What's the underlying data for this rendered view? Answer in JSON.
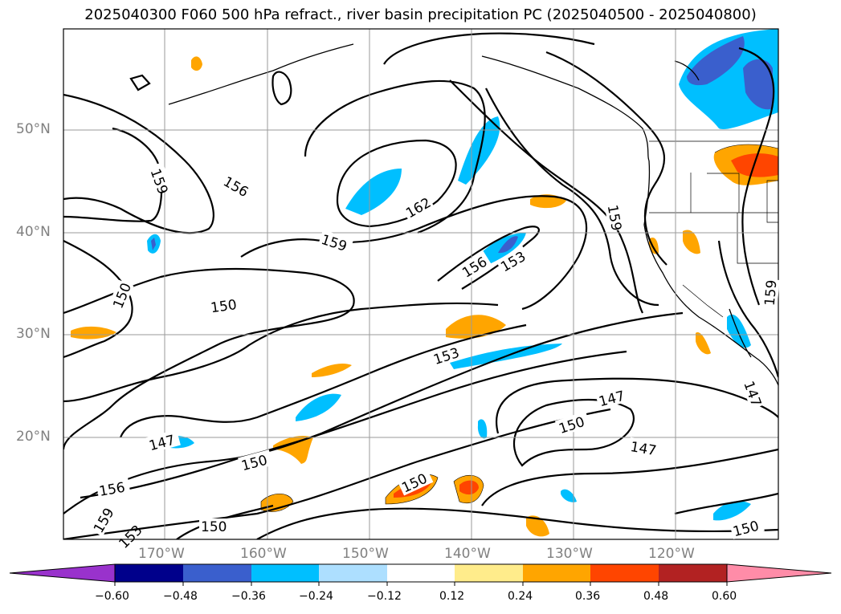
{
  "title": "2025040300 F060 500 hPa refract., river basin precipitation PC (2025040500 - 2025040800)",
  "latitude_labels": [
    "50°N",
    "40°N",
    "30°N",
    "20°N"
  ],
  "longitude_labels": [
    "170°W",
    "160°W",
    "150°W",
    "140°W",
    "130°W",
    "120°W"
  ],
  "contour_labels": [
    "159",
    "156",
    "162",
    "159",
    "156",
    "153",
    "159",
    "150",
    "150",
    "153",
    "147",
    "150",
    "147",
    "147",
    "150",
    "150",
    "156",
    "159",
    "153",
    "150",
    "159",
    "147",
    "150"
  ],
  "colorbar": {
    "tick_labels": [
      "−0.60",
      "−0.48",
      "−0.36",
      "−0.24",
      "−0.12",
      "0.12",
      "0.24",
      "0.36",
      "0.48",
      "0.60"
    ],
    "colors": [
      "#9932CC",
      "#00008B",
      "#3A5FCD",
      "#00BFFF",
      "#ADDFFF",
      "#FFFFFF",
      "#FFEC8B",
      "#FFA500",
      "#FF4500",
      "#B22222",
      "#FF8CA8"
    ]
  }
}
